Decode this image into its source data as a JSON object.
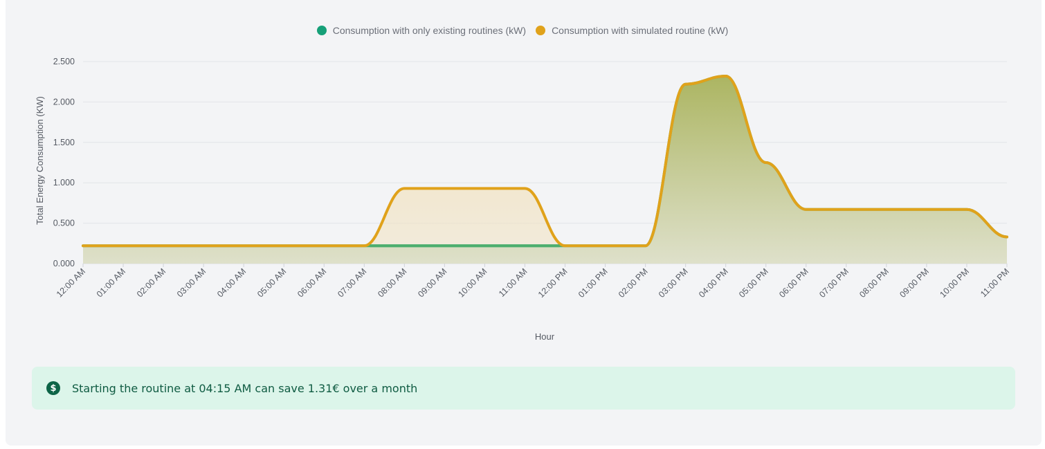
{
  "colors": {
    "existing": "#16a078",
    "existing_line": "#4cae6e",
    "simulated": "#e0a21b",
    "alert_bg": "#dcf5ea",
    "alert_text": "#0f5b42"
  },
  "alert": {
    "icon": "dollar-circle-icon",
    "text": "Starting the routine at 04:15 AM can save 1.31€ over a month"
  },
  "chart_data": {
    "type": "area",
    "title": "",
    "xlabel": "Hour",
    "ylabel": "Total Energy Consumption (KW)",
    "ylim": [
      0,
      2.5
    ],
    "yticks": [
      "0.000",
      "0.500",
      "1.000",
      "1.500",
      "2.000",
      "2.500"
    ],
    "grid": true,
    "legend_position": "top-center",
    "categories": [
      "12:00 AM",
      "01:00 AM",
      "02:00 AM",
      "03:00 AM",
      "04:00 AM",
      "05:00 AM",
      "06:00 AM",
      "07:00 AM",
      "08:00 AM",
      "09:00 AM",
      "10:00 AM",
      "11:00 AM",
      "12:00 PM",
      "01:00 PM",
      "02:00 PM",
      "03:00 PM",
      "04:00 PM",
      "05:00 PM",
      "06:00 PM",
      "07:00 PM",
      "08:00 PM",
      "09:00 PM",
      "10:00 PM",
      "11:00 PM"
    ],
    "series": [
      {
        "name": "Consumption with only existing routines (kW)",
        "values": [
          0.22,
          0.22,
          0.22,
          0.22,
          0.22,
          0.22,
          0.22,
          0.22,
          0.22,
          0.22,
          0.22,
          0.22,
          0.22,
          0.22,
          0.22,
          2.22,
          2.32,
          1.25,
          0.67,
          0.67,
          0.67,
          0.67,
          0.67,
          0.33
        ]
      },
      {
        "name": "Consumption with simulated routine (kW)",
        "values": [
          0.22,
          0.22,
          0.22,
          0.22,
          0.22,
          0.22,
          0.22,
          0.22,
          0.93,
          0.93,
          0.93,
          0.93,
          0.22,
          0.22,
          0.22,
          2.22,
          2.32,
          1.25,
          0.67,
          0.67,
          0.67,
          0.67,
          0.67,
          0.33
        ]
      }
    ]
  }
}
